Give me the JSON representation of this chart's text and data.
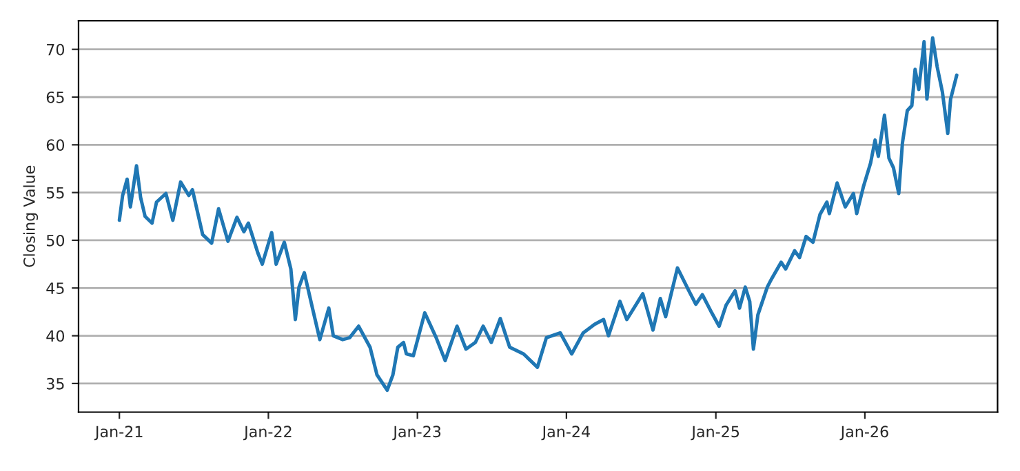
{
  "chart_data": {
    "type": "line",
    "ylabel": "Closing Value",
    "x": [
      "2021-01-01",
      "2021-01-09",
      "2021-01-20",
      "2021-01-28",
      "2021-02-12",
      "2021-02-22",
      "2021-03-05",
      "2021-03-22",
      "2021-04-02",
      "2021-04-25",
      "2021-05-12",
      "2021-05-31",
      "2021-06-20",
      "2021-06-29",
      "2021-07-24",
      "2021-08-15",
      "2021-09-01",
      "2021-09-24",
      "2021-10-16",
      "2021-11-02",
      "2021-11-13",
      "2021-12-06",
      "2021-12-17",
      "2022-01-09",
      "2022-01-20",
      "2022-02-09",
      "2022-02-25",
      "2022-03-08",
      "2022-03-17",
      "2022-03-30",
      "2022-04-20",
      "2022-05-07",
      "2022-05-29",
      "2022-06-09",
      "2022-07-02",
      "2022-07-19",
      "2022-08-10",
      "2022-09-07",
      "2022-09-24",
      "2022-10-19",
      "2022-11-02",
      "2022-11-14",
      "2022-11-28",
      "2022-12-05",
      "2022-12-22",
      "2023-01-19",
      "2023-02-16",
      "2023-03-10",
      "2023-04-08",
      "2023-04-30",
      "2023-05-23",
      "2023-06-11",
      "2023-07-01",
      "2023-07-23",
      "2023-08-15",
      "2023-09-18",
      "2023-10-22",
      "2023-11-13",
      "2023-12-17",
      "2024-01-14",
      "2024-02-11",
      "2024-03-10",
      "2024-04-01",
      "2024-04-13",
      "2024-05-11",
      "2024-05-28",
      "2024-07-06",
      "2024-07-31",
      "2024-08-18",
      "2024-08-31",
      "2024-09-29",
      "2024-10-27",
      "2024-11-13",
      "2024-11-29",
      "2024-12-22",
      "2025-01-09",
      "2025-01-26",
      "2025-02-17",
      "2025-02-28",
      "2025-03-14",
      "2025-03-25",
      "2025-04-03",
      "2025-04-14",
      "2025-05-07",
      "2025-05-18",
      "2025-06-10",
      "2025-06-21",
      "2025-07-13",
      "2025-07-25",
      "2025-08-10",
      "2025-08-27",
      "2025-09-13",
      "2025-09-30",
      "2025-10-06",
      "2025-10-25",
      "2025-11-14",
      "2025-12-04",
      "2025-12-12",
      "2025-12-29",
      "2026-01-15",
      "2026-01-26",
      "2026-02-03",
      "2026-02-18",
      "2026-03-01",
      "2026-03-12",
      "2026-03-25",
      "2026-04-03",
      "2026-04-15",
      "2026-04-26",
      "2026-05-04",
      "2026-05-13",
      "2026-05-26",
      "2026-06-02",
      "2026-06-16",
      "2026-06-27",
      "2026-07-10",
      "2026-07-23",
      "2026-07-30",
      "2026-08-14"
    ],
    "series": [
      {
        "color": "#1f77b4",
        "values": [
          52.1,
          54.7,
          56.4,
          53.5,
          57.8,
          54.5,
          52.5,
          51.8,
          54.0,
          54.9,
          52.1,
          56.1,
          54.7,
          55.3,
          50.6,
          49.7,
          53.3,
          49.9,
          52.4,
          50.9,
          51.8,
          48.7,
          47.5,
          50.8,
          47.5,
          49.8,
          47.0,
          41.7,
          45.1,
          46.6,
          42.7,
          39.6,
          42.9,
          40.0,
          39.6,
          39.8,
          41.0,
          38.8,
          35.9,
          34.3,
          35.9,
          38.8,
          39.3,
          38.1,
          37.9,
          42.4,
          39.8,
          37.4,
          41.0,
          38.6,
          39.3,
          41.0,
          39.3,
          41.8,
          38.8,
          38.1,
          36.7,
          39.8,
          40.3,
          38.1,
          40.3,
          41.2,
          41.7,
          40.0,
          43.6,
          41.7,
          44.4,
          40.6,
          43.9,
          42.0,
          47.1,
          44.7,
          43.3,
          44.3,
          42.4,
          41.0,
          43.2,
          44.7,
          42.9,
          45.1,
          43.6,
          38.6,
          42.2,
          45.1,
          46.0,
          47.7,
          47.0,
          48.9,
          48.2,
          50.4,
          49.8,
          52.7,
          54.0,
          52.8,
          56.0,
          53.5,
          54.9,
          52.8,
          55.7,
          58.1,
          60.5,
          58.8,
          63.1,
          58.6,
          57.6,
          54.9,
          60.2,
          63.6,
          64.1,
          67.9,
          65.8,
          70.8,
          64.8,
          71.2,
          68.2,
          65.5,
          61.2,
          64.8,
          67.3
        ]
      }
    ],
    "xlim": [
      "2020-09-23",
      "2026-11-22"
    ],
    "xticks": [
      {
        "value": "2021-01-01",
        "label": "Jan-21"
      },
      {
        "value": "2022-01-01",
        "label": "Jan-22"
      },
      {
        "value": "2023-01-01",
        "label": "Jan-23"
      },
      {
        "value": "2024-01-01",
        "label": "Jan-24"
      },
      {
        "value": "2025-01-01",
        "label": "Jan-25"
      },
      {
        "value": "2026-01-01",
        "label": "Jan-26"
      }
    ],
    "ylim": [
      32,
      73
    ],
    "yticks": [
      35,
      40,
      45,
      50,
      55,
      60,
      65,
      70
    ],
    "grid": "y"
  }
}
